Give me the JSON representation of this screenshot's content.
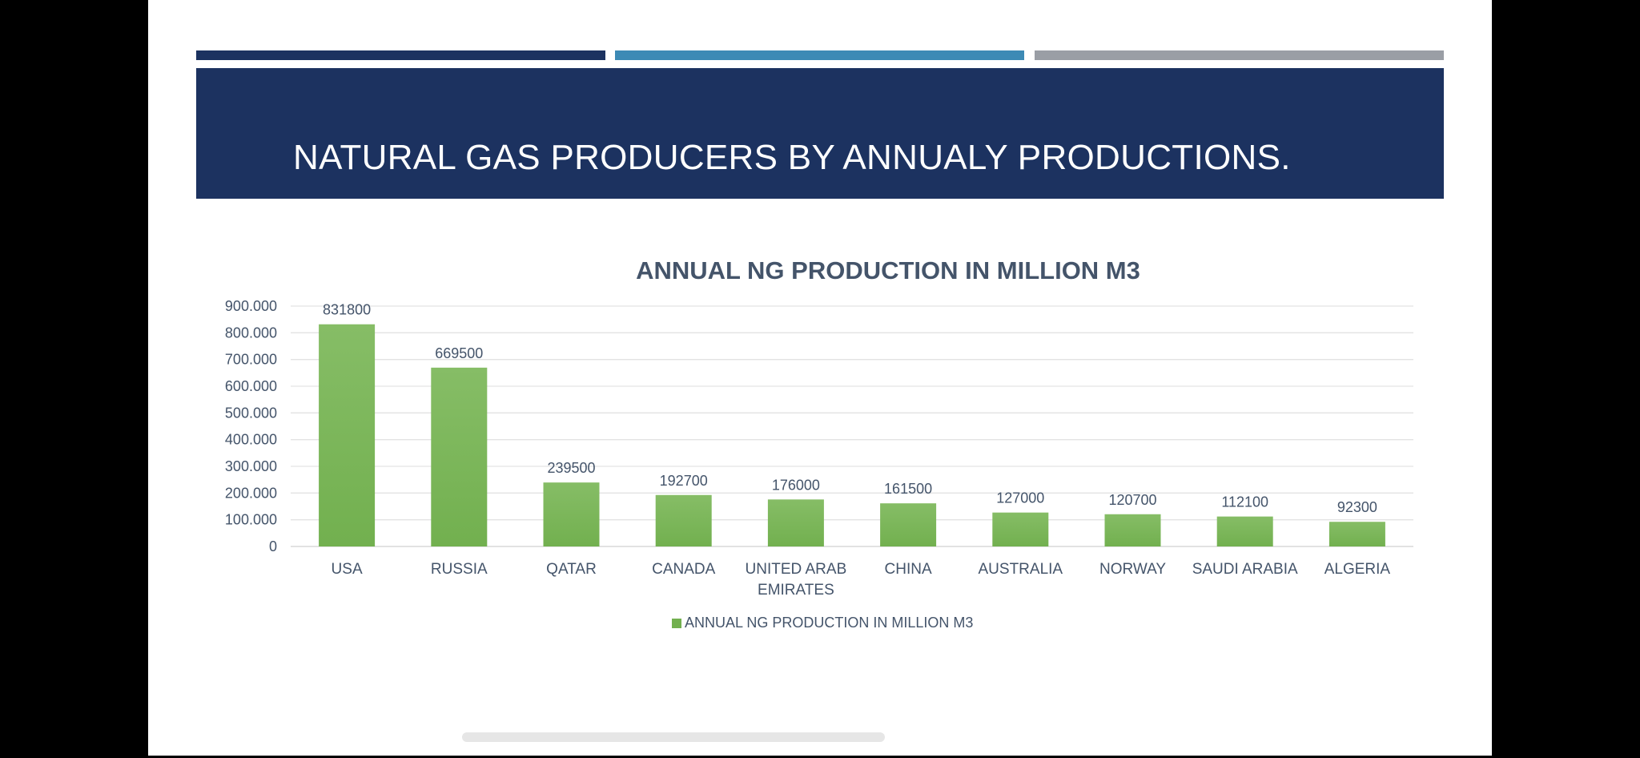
{
  "slide": {
    "title": "NATURAL GAS PRODUCERS BY ANNUALY PRODUCTIONS.",
    "colors": {
      "banner": "#1c3260",
      "accent_dark": "#1c3260",
      "accent_blue": "#3d8ab5",
      "accent_gray": "#9a9ea5",
      "bar": "#72b04f",
      "text": "#44546a"
    }
  },
  "chart_data": {
    "type": "bar",
    "title": "ANNUAL NG PRODUCTION IN MILLION M3",
    "categories": [
      "USA",
      "RUSSIA",
      "QATAR",
      "CANADA",
      "UNITED ARAB EMIRATES",
      "CHINA",
      "AUSTRALIA",
      "NORWAY",
      "SAUDI ARABIA",
      "ALGERIA"
    ],
    "category_labels": [
      [
        "USA"
      ],
      [
        "RUSSIA"
      ],
      [
        "QATAR"
      ],
      [
        "CANADA"
      ],
      [
        "UNITED ARAB",
        "EMIRATES"
      ],
      [
        "CHINA"
      ],
      [
        "AUSTRALIA"
      ],
      [
        "NORWAY"
      ],
      [
        "SAUDI ARABIA"
      ],
      [
        "ALGERIA"
      ]
    ],
    "series": [
      {
        "name": "ANNUAL NG PRODUCTION IN MILLION M3",
        "values": [
          831800,
          669500,
          239500,
          192700,
          176000,
          161500,
          127000,
          120700,
          112100,
          92300
        ],
        "data_labels": [
          "831800",
          "669500",
          "239500",
          "192700",
          "176000",
          "161500",
          "127000",
          "120700",
          "112100",
          "92300"
        ]
      }
    ],
    "ylim": [
      0,
      900000
    ],
    "yticks": [
      0,
      100000,
      200000,
      300000,
      400000,
      500000,
      600000,
      700000,
      800000,
      900000
    ],
    "ytick_labels": [
      "0",
      "100.000",
      "200.000",
      "300.000",
      "400.000",
      "500.000",
      "600.000",
      "700.000",
      "800.000",
      "900.000"
    ],
    "grid": true,
    "legend": "bottom",
    "xlabel": "",
    "ylabel": ""
  }
}
